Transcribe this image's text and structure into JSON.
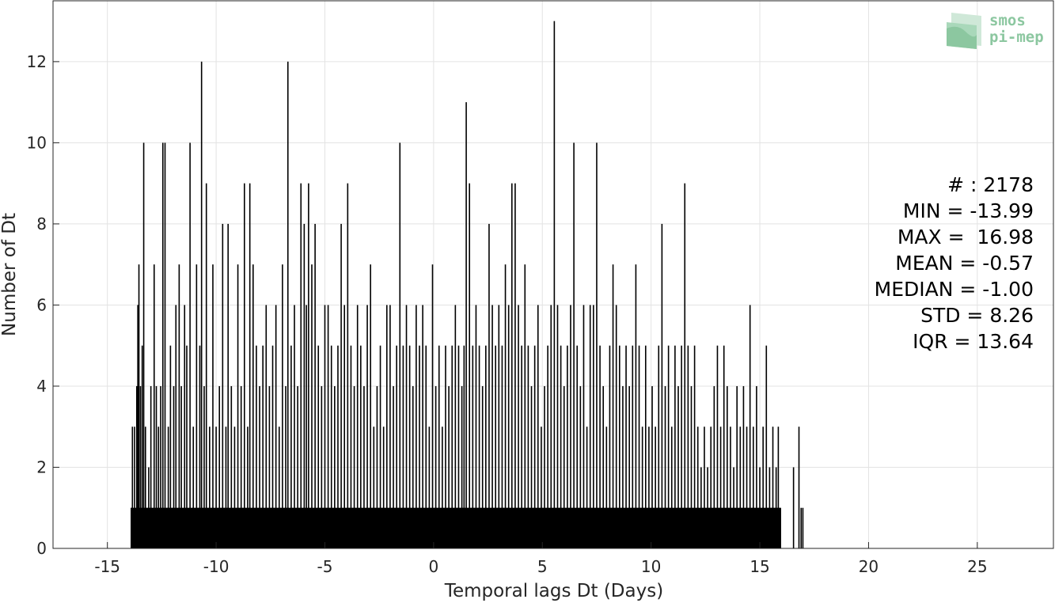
{
  "chart_data": {
    "type": "bar",
    "title": "",
    "xlabel": "Temporal lags Dt (Days)",
    "ylabel": "Number of Dt",
    "xlim": [
      -17.5,
      28.5
    ],
    "ylim": [
      0,
      13.5
    ],
    "xticks": [
      -15,
      -10,
      -5,
      0,
      5,
      10,
      15,
      20,
      25
    ],
    "xtick_labels": [
      "-15",
      "-10",
      "-5",
      "0",
      "5",
      "10",
      "15",
      "20",
      "25"
    ],
    "yticks": [
      0,
      2,
      4,
      6,
      8,
      10,
      12
    ],
    "ytick_labels": [
      "0",
      "2",
      "4",
      "6",
      "8",
      "10",
      "12"
    ],
    "grid": true,
    "bar_color": "#000000",
    "bin_width": 0.0417,
    "bins": [
      {
        "x": -13.9,
        "v": 1
      },
      {
        "x": -13.85,
        "v": 3
      },
      {
        "x": -13.75,
        "v": 3
      },
      {
        "x": -13.65,
        "v": 4
      },
      {
        "x": -13.6,
        "v": 6
      },
      {
        "x": -13.55,
        "v": 7
      },
      {
        "x": -13.48,
        "v": 4
      },
      {
        "x": -13.4,
        "v": 5
      },
      {
        "x": -13.33,
        "v": 10
      },
      {
        "x": -13.25,
        "v": 3
      },
      {
        "x": -13.1,
        "v": 2
      },
      {
        "x": -13.0,
        "v": 4
      },
      {
        "x": -12.85,
        "v": 7
      },
      {
        "x": -12.75,
        "v": 4
      },
      {
        "x": -12.65,
        "v": 3
      },
      {
        "x": -12.55,
        "v": 4
      },
      {
        "x": -12.45,
        "v": 10
      },
      {
        "x": -12.35,
        "v": 10
      },
      {
        "x": -12.2,
        "v": 3
      },
      {
        "x": -12.1,
        "v": 5
      },
      {
        "x": -11.95,
        "v": 4
      },
      {
        "x": -11.85,
        "v": 6
      },
      {
        "x": -11.7,
        "v": 7
      },
      {
        "x": -11.6,
        "v": 4
      },
      {
        "x": -11.45,
        "v": 6
      },
      {
        "x": -11.35,
        "v": 5
      },
      {
        "x": -11.2,
        "v": 10
      },
      {
        "x": -11.05,
        "v": 3
      },
      {
        "x": -10.9,
        "v": 7
      },
      {
        "x": -10.75,
        "v": 5
      },
      {
        "x": -10.67,
        "v": 12
      },
      {
        "x": -10.55,
        "v": 4
      },
      {
        "x": -10.45,
        "v": 9
      },
      {
        "x": -10.3,
        "v": 3
      },
      {
        "x": -10.15,
        "v": 7
      },
      {
        "x": -10.0,
        "v": 3
      },
      {
        "x": -9.85,
        "v": 4
      },
      {
        "x": -9.7,
        "v": 8
      },
      {
        "x": -9.55,
        "v": 3
      },
      {
        "x": -9.45,
        "v": 8
      },
      {
        "x": -9.3,
        "v": 4
      },
      {
        "x": -9.15,
        "v": 3
      },
      {
        "x": -9.0,
        "v": 7
      },
      {
        "x": -8.85,
        "v": 4
      },
      {
        "x": -8.7,
        "v": 9
      },
      {
        "x": -8.55,
        "v": 3
      },
      {
        "x": -8.45,
        "v": 9
      },
      {
        "x": -8.3,
        "v": 7
      },
      {
        "x": -8.15,
        "v": 5
      },
      {
        "x": -8.0,
        "v": 4
      },
      {
        "x": -7.85,
        "v": 5
      },
      {
        "x": -7.7,
        "v": 6
      },
      {
        "x": -7.55,
        "v": 4
      },
      {
        "x": -7.4,
        "v": 5
      },
      {
        "x": -7.25,
        "v": 6
      },
      {
        "x": -7.1,
        "v": 3
      },
      {
        "x": -6.95,
        "v": 7
      },
      {
        "x": -6.8,
        "v": 4
      },
      {
        "x": -6.7,
        "v": 12
      },
      {
        "x": -6.55,
        "v": 5
      },
      {
        "x": -6.4,
        "v": 6
      },
      {
        "x": -6.25,
        "v": 4
      },
      {
        "x": -6.1,
        "v": 9
      },
      {
        "x": -5.95,
        "v": 8
      },
      {
        "x": -5.85,
        "v": 6
      },
      {
        "x": -5.75,
        "v": 9
      },
      {
        "x": -5.6,
        "v": 7
      },
      {
        "x": -5.45,
        "v": 8
      },
      {
        "x": -5.3,
        "v": 5
      },
      {
        "x": -5.15,
        "v": 4
      },
      {
        "x": -5.0,
        "v": 6
      },
      {
        "x": -4.85,
        "v": 6
      },
      {
        "x": -4.7,
        "v": 5
      },
      {
        "x": -4.55,
        "v": 4
      },
      {
        "x": -4.4,
        "v": 5
      },
      {
        "x": -4.25,
        "v": 8
      },
      {
        "x": -4.1,
        "v": 6
      },
      {
        "x": -3.95,
        "v": 9
      },
      {
        "x": -3.8,
        "v": 5
      },
      {
        "x": -3.65,
        "v": 4
      },
      {
        "x": -3.5,
        "v": 6
      },
      {
        "x": -3.35,
        "v": 5
      },
      {
        "x": -3.2,
        "v": 4
      },
      {
        "x": -3.05,
        "v": 6
      },
      {
        "x": -2.9,
        "v": 7
      },
      {
        "x": -2.75,
        "v": 3
      },
      {
        "x": -2.6,
        "v": 4
      },
      {
        "x": -2.45,
        "v": 5
      },
      {
        "x": -2.3,
        "v": 3
      },
      {
        "x": -2.15,
        "v": 6
      },
      {
        "x": -2.0,
        "v": 6
      },
      {
        "x": -1.85,
        "v": 4
      },
      {
        "x": -1.7,
        "v": 5
      },
      {
        "x": -1.55,
        "v": 10
      },
      {
        "x": -1.4,
        "v": 5
      },
      {
        "x": -1.25,
        "v": 6
      },
      {
        "x": -1.1,
        "v": 5
      },
      {
        "x": -0.95,
        "v": 4
      },
      {
        "x": -0.8,
        "v": 6
      },
      {
        "x": -0.65,
        "v": 5
      },
      {
        "x": -0.5,
        "v": 6
      },
      {
        "x": -0.35,
        "v": 5
      },
      {
        "x": -0.2,
        "v": 3
      },
      {
        "x": -0.05,
        "v": 7
      },
      {
        "x": 0.1,
        "v": 4
      },
      {
        "x": 0.25,
        "v": 5
      },
      {
        "x": 0.4,
        "v": 3
      },
      {
        "x": 0.55,
        "v": 5
      },
      {
        "x": 0.7,
        "v": 4
      },
      {
        "x": 0.85,
        "v": 5
      },
      {
        "x": 1.0,
        "v": 6
      },
      {
        "x": 1.15,
        "v": 5
      },
      {
        "x": 1.3,
        "v": 4
      },
      {
        "x": 1.4,
        "v": 5
      },
      {
        "x": 1.5,
        "v": 11
      },
      {
        "x": 1.65,
        "v": 9
      },
      {
        "x": 1.8,
        "v": 5
      },
      {
        "x": 1.95,
        "v": 6
      },
      {
        "x": 2.1,
        "v": 5
      },
      {
        "x": 2.25,
        "v": 4
      },
      {
        "x": 2.4,
        "v": 5
      },
      {
        "x": 2.55,
        "v": 8
      },
      {
        "x": 2.7,
        "v": 6
      },
      {
        "x": 2.85,
        "v": 5
      },
      {
        "x": 3.0,
        "v": 6
      },
      {
        "x": 3.15,
        "v": 5
      },
      {
        "x": 3.3,
        "v": 7
      },
      {
        "x": 3.45,
        "v": 6
      },
      {
        "x": 3.6,
        "v": 9
      },
      {
        "x": 3.75,
        "v": 9
      },
      {
        "x": 3.9,
        "v": 6
      },
      {
        "x": 4.05,
        "v": 5
      },
      {
        "x": 4.2,
        "v": 7
      },
      {
        "x": 4.35,
        "v": 5
      },
      {
        "x": 4.5,
        "v": 4
      },
      {
        "x": 4.65,
        "v": 5
      },
      {
        "x": 4.8,
        "v": 6
      },
      {
        "x": 4.95,
        "v": 3
      },
      {
        "x": 5.1,
        "v": 4
      },
      {
        "x": 5.25,
        "v": 5
      },
      {
        "x": 5.4,
        "v": 6
      },
      {
        "x": 5.55,
        "v": 13
      },
      {
        "x": 5.7,
        "v": 6
      },
      {
        "x": 5.85,
        "v": 5
      },
      {
        "x": 6.0,
        "v": 4
      },
      {
        "x": 6.15,
        "v": 5
      },
      {
        "x": 6.3,
        "v": 6
      },
      {
        "x": 6.45,
        "v": 10
      },
      {
        "x": 6.6,
        "v": 5
      },
      {
        "x": 6.75,
        "v": 4
      },
      {
        "x": 6.9,
        "v": 6
      },
      {
        "x": 7.05,
        "v": 3
      },
      {
        "x": 7.2,
        "v": 6
      },
      {
        "x": 7.35,
        "v": 6
      },
      {
        "x": 7.5,
        "v": 10
      },
      {
        "x": 7.65,
        "v": 5
      },
      {
        "x": 7.8,
        "v": 4
      },
      {
        "x": 7.95,
        "v": 3
      },
      {
        "x": 8.1,
        "v": 5
      },
      {
        "x": 8.25,
        "v": 7
      },
      {
        "x": 8.4,
        "v": 6
      },
      {
        "x": 8.55,
        "v": 5
      },
      {
        "x": 8.7,
        "v": 4
      },
      {
        "x": 8.85,
        "v": 5
      },
      {
        "x": 9.0,
        "v": 4
      },
      {
        "x": 9.15,
        "v": 5
      },
      {
        "x": 9.3,
        "v": 7
      },
      {
        "x": 9.45,
        "v": 5
      },
      {
        "x": 9.6,
        "v": 3
      },
      {
        "x": 9.75,
        "v": 5
      },
      {
        "x": 9.9,
        "v": 3
      },
      {
        "x": 10.05,
        "v": 4
      },
      {
        "x": 10.2,
        "v": 3
      },
      {
        "x": 10.35,
        "v": 5
      },
      {
        "x": 10.5,
        "v": 8
      },
      {
        "x": 10.65,
        "v": 4
      },
      {
        "x": 10.8,
        "v": 5
      },
      {
        "x": 10.95,
        "v": 3
      },
      {
        "x": 11.1,
        "v": 5
      },
      {
        "x": 11.25,
        "v": 4
      },
      {
        "x": 11.4,
        "v": 5
      },
      {
        "x": 11.55,
        "v": 9
      },
      {
        "x": 11.7,
        "v": 5
      },
      {
        "x": 11.85,
        "v": 4
      },
      {
        "x": 12.0,
        "v": 5
      },
      {
        "x": 12.15,
        "v": 3
      },
      {
        "x": 12.3,
        "v": 2
      },
      {
        "x": 12.45,
        "v": 3
      },
      {
        "x": 12.6,
        "v": 2
      },
      {
        "x": 12.75,
        "v": 3
      },
      {
        "x": 12.9,
        "v": 4
      },
      {
        "x": 13.05,
        "v": 5
      },
      {
        "x": 13.2,
        "v": 3
      },
      {
        "x": 13.35,
        "v": 5
      },
      {
        "x": 13.5,
        "v": 4
      },
      {
        "x": 13.65,
        "v": 3
      },
      {
        "x": 13.8,
        "v": 2
      },
      {
        "x": 13.95,
        "v": 4
      },
      {
        "x": 14.1,
        "v": 3
      },
      {
        "x": 14.25,
        "v": 4
      },
      {
        "x": 14.4,
        "v": 3
      },
      {
        "x": 14.55,
        "v": 6
      },
      {
        "x": 14.7,
        "v": 3
      },
      {
        "x": 14.85,
        "v": 4
      },
      {
        "x": 15.0,
        "v": 2
      },
      {
        "x": 15.15,
        "v": 3
      },
      {
        "x": 15.3,
        "v": 5
      },
      {
        "x": 15.45,
        "v": 2
      },
      {
        "x": 15.6,
        "v": 3
      },
      {
        "x": 15.75,
        "v": 2
      },
      {
        "x": 15.85,
        "v": 3
      },
      {
        "x": 15.95,
        "v": 1
      },
      {
        "x": 16.55,
        "v": 2
      },
      {
        "x": 16.8,
        "v": 3
      },
      {
        "x": 16.9,
        "v": 1
      },
      {
        "x": 16.98,
        "v": 1
      }
    ]
  },
  "stats": [
    "# : 2178",
    "MIN = -13.99",
    "MAX =  16.98",
    "MEAN = -0.57",
    "MEDIAN = -1.00",
    "STD = 8.26",
    "IQR = 13.64"
  ],
  "logo": {
    "line1": "smos",
    "line2": "pi-mep",
    "color": "#8cc7a0"
  }
}
